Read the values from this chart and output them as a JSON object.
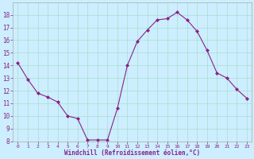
{
  "x": [
    0,
    1,
    2,
    3,
    4,
    5,
    6,
    7,
    8,
    9,
    10,
    11,
    12,
    13,
    14,
    15,
    16,
    17,
    18,
    19,
    20,
    21,
    22,
    23
  ],
  "y": [
    14.2,
    12.9,
    11.8,
    11.5,
    11.1,
    10.0,
    9.8,
    8.1,
    8.1,
    8.1,
    10.6,
    14.0,
    15.9,
    16.8,
    17.6,
    17.7,
    18.2,
    17.6,
    16.7,
    15.2,
    13.4,
    13.0,
    12.1,
    11.4
  ],
  "line_color": "#882288",
  "marker": "D",
  "marker_size": 2,
  "bg_color": "#cceeff",
  "grid_color": "#aaddcc",
  "xlabel": "Windchill (Refroidissement éolien,°C)",
  "xlabel_color": "#882288",
  "tick_color": "#882288",
  "ylim": [
    8,
    19
  ],
  "xlim": [
    -0.5,
    23.5
  ],
  "yticks": [
    8,
    9,
    10,
    11,
    12,
    13,
    14,
    15,
    16,
    17,
    18
  ],
  "xticks": [
    0,
    1,
    2,
    3,
    4,
    5,
    6,
    7,
    8,
    9,
    10,
    11,
    12,
    13,
    14,
    15,
    16,
    17,
    18,
    19,
    20,
    21,
    22,
    23
  ],
  "spine_color": "#aaaaaa"
}
